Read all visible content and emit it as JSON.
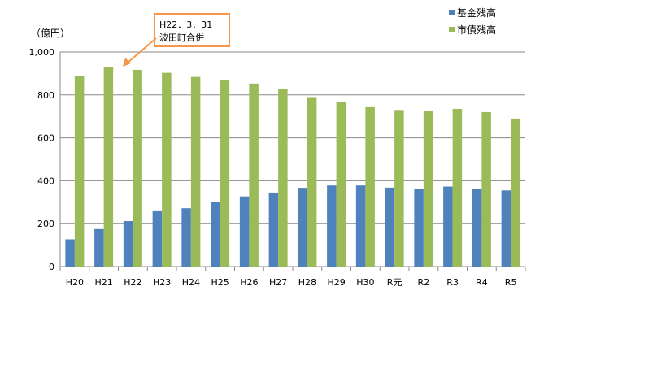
{
  "chart_data": {
    "type": "bar",
    "title": "",
    "ylabel": "（億円）",
    "xlabel": "",
    "ylim": [
      0,
      1000
    ],
    "yticks": [
      "0",
      "200",
      "400",
      "600",
      "800",
      "1,000"
    ],
    "ytick_values": [
      0,
      200,
      400,
      600,
      800,
      1000
    ],
    "grid": true,
    "legend_position": "top-right",
    "categories": [
      "H20",
      "H21",
      "H22",
      "H23",
      "H24",
      "H25",
      "H26",
      "H27",
      "H28",
      "H29",
      "H30",
      "R元",
      "R2",
      "R3",
      "R4",
      "R5"
    ],
    "series": [
      {
        "name": "基金残高",
        "color": "#4f81bd",
        "values": [
          127,
          175,
          212,
          258,
          272,
          302,
          327,
          345,
          367,
          378,
          378,
          368,
          360,
          373,
          360,
          355
        ]
      },
      {
        "name": "市債残高",
        "color": "#9bbb59",
        "values": [
          887,
          928,
          917,
          903,
          884,
          868,
          853,
          826,
          790,
          766,
          743,
          730,
          724,
          735,
          720,
          690
        ]
      }
    ],
    "annotation": {
      "lines": [
        "H22．3．31",
        "波田町合併"
      ],
      "border_color": "#f79646",
      "points_to_category": "H21"
    }
  }
}
